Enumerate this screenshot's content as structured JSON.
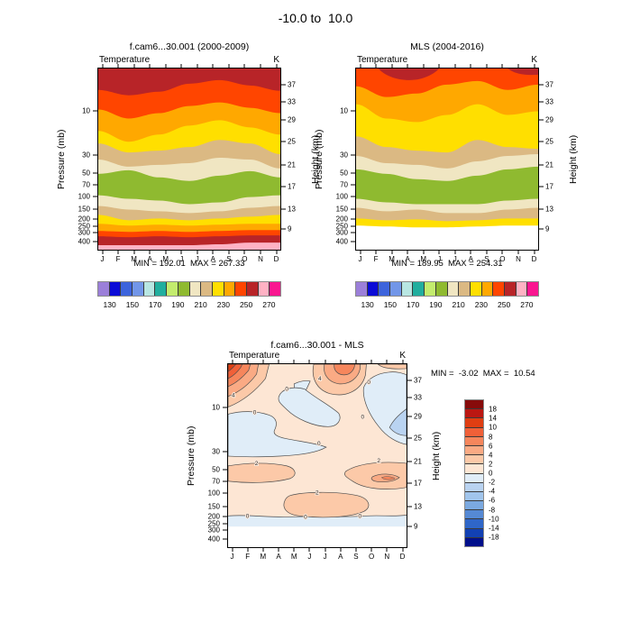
{
  "main_title": "-10.0 to  10.0",
  "panels": {
    "model": {
      "title": "f.cam6...30.001 (2000-2009)",
      "field": "Temperature",
      "units": "K",
      "stats": "MIN = 192.01  MAX = 267.33"
    },
    "obs": {
      "title": "MLS (2004-2016)",
      "field": "Temperature",
      "units": "K",
      "stats": "MIN = 189.95  MAX = 254.31"
    },
    "diff": {
      "title": "f.cam6...30.001 - MLS",
      "field": "Temperature",
      "units": "K",
      "stats": "MIN =  -3.02  MAX =  10.54"
    }
  },
  "axes": {
    "pressure_label": "Pressure (mb)",
    "height_label": "Height (km)",
    "months": [
      "J",
      "F",
      "M",
      "A",
      "M",
      "J",
      "J",
      "A",
      "S",
      "O",
      "N",
      "D"
    ],
    "pressure_ticks": [
      "10",
      "30",
      "50",
      "70",
      "100",
      "150",
      "200",
      "250",
      "300",
      "400"
    ],
    "pressure_frac": [
      0.236,
      0.478,
      0.576,
      0.64,
      0.704,
      0.778,
      0.833,
      0.872,
      0.906,
      0.956
    ],
    "height_ticks": [
      "37",
      "33",
      "29",
      "25",
      "21",
      "17",
      "13",
      "9"
    ],
    "height_frac": [
      0.089,
      0.182,
      0.286,
      0.404,
      0.532,
      0.65,
      0.778,
      0.887
    ]
  },
  "colorbars": {
    "temp": {
      "labels": [
        "130",
        "150",
        "170",
        "190",
        "210",
        "230",
        "250",
        "270"
      ],
      "colors": [
        "#9B7FD9",
        "#0B0BD6",
        "#3D64DC",
        "#7296E8",
        "#B8E6E2",
        "#21AE9E",
        "#C3EC6E",
        "#8FBA30",
        "#F0E6C2",
        "#DBB983",
        "#FFDF00",
        "#FFA800",
        "#FF4500",
        "#B82428",
        "#FFB2C4",
        "#FA1690"
      ]
    },
    "diff": {
      "labels": [
        "18",
        "14",
        "10",
        "8",
        "6",
        "4",
        "2",
        "0",
        "-2",
        "-4",
        "-6",
        "-8",
        "-10",
        "-14",
        "-18"
      ],
      "colors": [
        "#870B0B",
        "#BB1712",
        "#E03E12",
        "#F16038",
        "#F6865C",
        "#FAAA84",
        "#FCC9A8",
        "#FDE6D4",
        "#E0EDF8",
        "#B9D3F1",
        "#A1C5EC",
        "#7BA9E0",
        "#5589D4",
        "#2F66C8",
        "#1241B4",
        "#000F8B"
      ]
    }
  },
  "contour_labels": {
    "zero": "0",
    "two": "2",
    "four": "4"
  },
  "chart_data": [
    {
      "type": "filled_contour",
      "panel": "model",
      "title": "f.cam6...30.001 (2000-2009)",
      "variable": "Temperature",
      "units": "K",
      "x": {
        "label": "month",
        "categories": [
          "J",
          "F",
          "M",
          "A",
          "M",
          "J",
          "J",
          "A",
          "S",
          "O",
          "N",
          "D"
        ]
      },
      "y": {
        "label": "Pressure (mb)",
        "scale": "log",
        "ticks": [
          10,
          30,
          50,
          70,
          100,
          150,
          200,
          250,
          300,
          400
        ],
        "range_mb": [
          3,
          500
        ]
      },
      "y2": {
        "label": "Height (km)",
        "ticks": [
          37,
          33,
          29,
          25,
          21,
          17,
          13,
          9
        ]
      },
      "levels_K": [
        130,
        140,
        150,
        160,
        170,
        180,
        190,
        200,
        210,
        220,
        230,
        240,
        250,
        260,
        270
      ],
      "min": 192.01,
      "max": 267.33,
      "structure": "Horizontal temperature bands: warm (250-270K, red/dark-red) at top near 1-5mb with seasonal wave; orange then thick yellow (230-250K) 5-20mb; tan/beige (210-230K) 20-60mb; cold green minimum (190-200K) near tropopause 70-140mb; warming again below: beige/tan/yellow/orange/red to dark red (250-260K) 300-450mb and pink (260-270K) near 500mb."
    },
    {
      "type": "filled_contour",
      "panel": "obs",
      "title": "MLS (2004-2016)",
      "variable": "Temperature",
      "units": "K",
      "x": {
        "label": "month",
        "categories": [
          "J",
          "F",
          "M",
          "A",
          "M",
          "J",
          "J",
          "A",
          "S",
          "O",
          "N",
          "D"
        ]
      },
      "y": {
        "label": "Pressure (mb)",
        "scale": "log",
        "ticks": [
          10,
          30,
          50,
          70,
          100,
          150,
          200,
          250,
          300,
          400
        ],
        "range_mb": [
          3,
          500
        ]
      },
      "y2": {
        "label": "Height (km)",
        "ticks": [
          37,
          33,
          29,
          25,
          21,
          17,
          13,
          9
        ]
      },
      "levels_K": [
        130,
        140,
        150,
        160,
        170,
        180,
        190,
        200,
        210,
        220,
        230,
        240,
        250,
        260,
        270
      ],
      "min": 189.95,
      "max": 254.31,
      "structure": "Same banding as model but cooler at top (dark-red 250-260K only in patches near Mar-Apr and Nov); green tropopause minimum 70-140mb; yellow band ends at 250mb; no data (white) below 250mb."
    },
    {
      "type": "filled_contour",
      "panel": "difference",
      "title": "f.cam6...30.001 - MLS",
      "variable": "Temperature difference (model - observations)",
      "units": "K",
      "x": {
        "label": "month",
        "categories": [
          "J",
          "F",
          "M",
          "A",
          "M",
          "J",
          "J",
          "A",
          "S",
          "O",
          "N",
          "D"
        ]
      },
      "y": {
        "label": "Pressure (mb)",
        "scale": "log",
        "ticks": [
          10,
          30,
          50,
          70,
          100,
          150,
          200,
          250,
          300,
          400
        ],
        "range_mb": [
          3,
          500
        ]
      },
      "y2": {
        "label": "Height (km)",
        "ticks": [
          37,
          33,
          29,
          25,
          21,
          17,
          13,
          9
        ]
      },
      "levels_K": [
        -18,
        -14,
        -10,
        -8,
        -6,
        -4,
        -2,
        0,
        2,
        4,
        6,
        8,
        10,
        14,
        18
      ],
      "min": -3.02,
      "max": 10.54,
      "structure": "Mostly +0 to +2K (pale peach). Warm bias up to ~+10K in upper-left corner (Jan-Feb, ~1-8mb) and +4 to +6K top-center (Jul-Sep); +2 to +4K bands near 70-100mb and 150mb. Cool patches -2 to 0K (pale blue) mid-stratosphere Feb-Jul ~10-50mb, Nov-Dec ~25-37km with -2 to -4K core, small patch near May ~35km, and a thin -2 to 0K band at 200-250mb; white (no data) below 250mb."
    }
  ]
}
